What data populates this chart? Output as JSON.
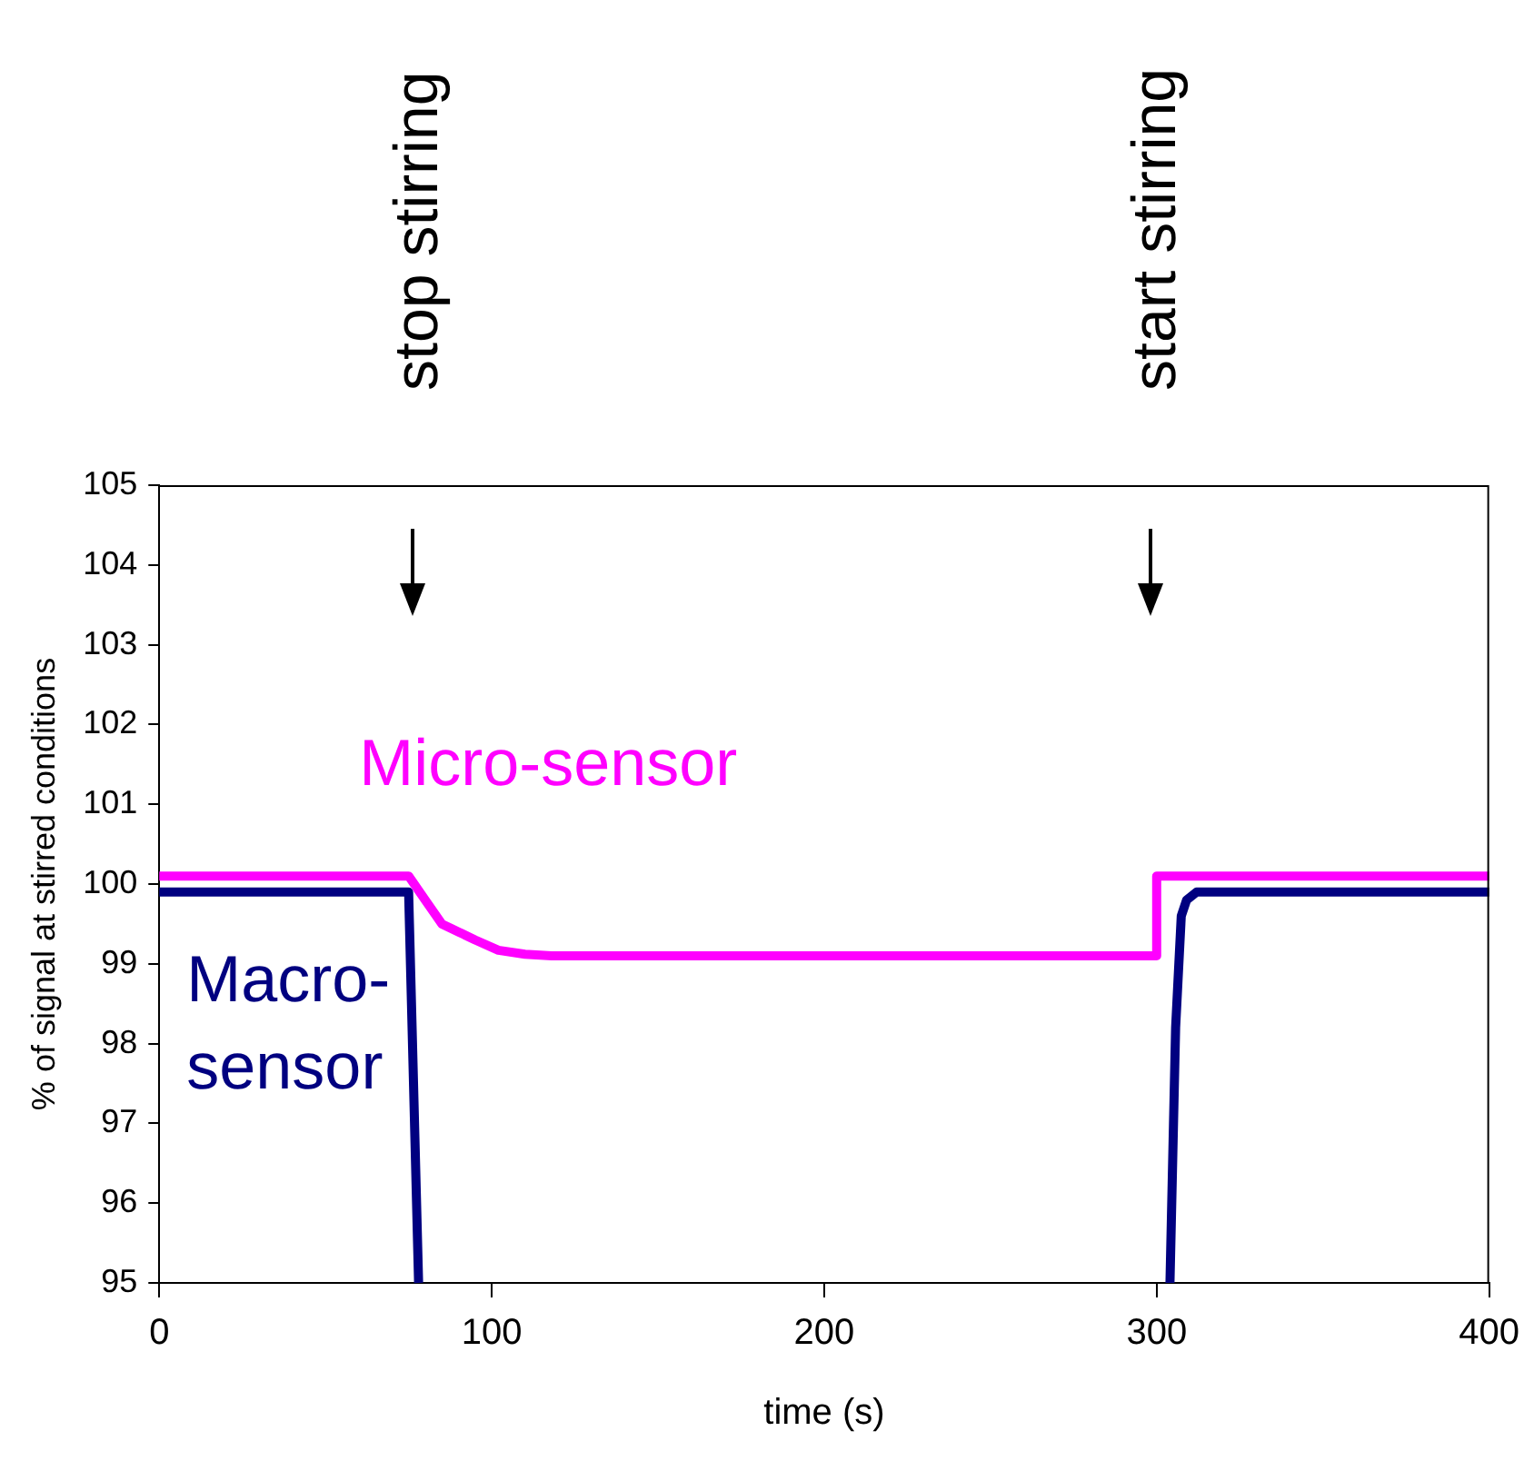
{
  "chart_data": {
    "type": "line",
    "xlabel": "time (s)",
    "ylabel": "% of signal at stirred conditions",
    "xlim": [
      0,
      400
    ],
    "xticks": [
      0,
      100,
      200,
      300,
      400
    ],
    "ylim": [
      95,
      105
    ],
    "yticks": [
      95,
      96,
      97,
      98,
      99,
      100,
      101,
      102,
      103,
      104,
      105
    ],
    "grid": false,
    "legend": false,
    "marker": "none",
    "line_style": "solid",
    "series": [
      {
        "name": "Micro-sensor",
        "color": "#ff00ff",
        "x": [
          0,
          75,
          80,
          85,
          90,
          95,
          102,
          110,
          118,
          300,
          300,
          400
        ],
        "values": [
          100.1,
          100.1,
          99.8,
          99.5,
          99.4,
          99.3,
          99.17,
          99.12,
          99.1,
          99.1,
          100.1,
          100.1
        ]
      },
      {
        "name": "Macro-sensor",
        "color": "#000080",
        "x": [
          0,
          75,
          78,
          null,
          304,
          305.7,
          307.4,
          309,
          312,
          400
        ],
        "values": [
          99.9,
          99.9,
          95,
          null,
          95,
          98.2,
          99.6,
          99.8,
          99.9,
          99.9
        ]
      }
    ],
    "annotations": [
      "stop stirring",
      "start stirring"
    ]
  }
}
